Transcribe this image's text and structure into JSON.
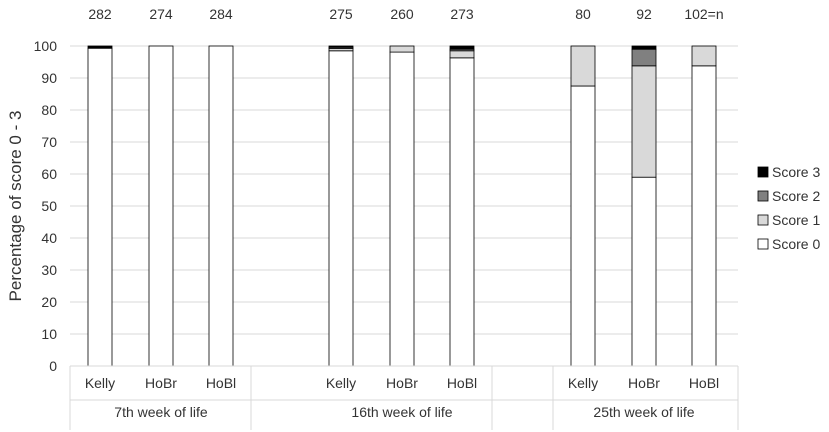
{
  "chart_data": {
    "type": "bar",
    "stacked": true,
    "ylabel": "Percentage of score 0 - 3",
    "xlabel": "",
    "ylim": [
      0,
      100
    ],
    "yticks": [
      0,
      10,
      20,
      30,
      40,
      50,
      60,
      70,
      80,
      90,
      100
    ],
    "grid": true,
    "legend_position": "right",
    "groups": [
      {
        "label": "7th week of life",
        "categories": [
          "Kelly",
          "HoBr",
          "HoBl"
        ],
        "n": [
          "282",
          "274",
          "284"
        ]
      },
      {
        "label": "16th week of life",
        "categories": [
          "Kelly",
          "HoBr",
          "HoBl"
        ],
        "n": [
          "275",
          "260",
          "273"
        ]
      },
      {
        "label": "25th week of life",
        "categories": [
          "Kelly",
          "HoBr",
          "HoBl"
        ],
        "n": [
          "80",
          "92",
          "102=n"
        ]
      }
    ],
    "series": [
      {
        "name": "Score 0",
        "color": "#ffffff",
        "values": [
          99.3,
          100,
          100,
          98.5,
          98.1,
          96.3,
          87.5,
          59.0,
          93.8
        ]
      },
      {
        "name": "Score 1",
        "color": "#d9d9d9",
        "values": [
          0.0,
          0,
          0,
          0.7,
          1.9,
          2.2,
          12.5,
          34.8,
          6.2
        ]
      },
      {
        "name": "Score 2",
        "color": "#808080",
        "values": [
          0.0,
          0,
          0,
          0.4,
          0,
          0.5,
          0,
          5.2,
          0
        ]
      },
      {
        "name": "Score 3",
        "color": "#000000",
        "values": [
          0.7,
          0,
          0,
          0.4,
          0,
          1.0,
          0,
          1.0,
          0
        ]
      }
    ]
  }
}
